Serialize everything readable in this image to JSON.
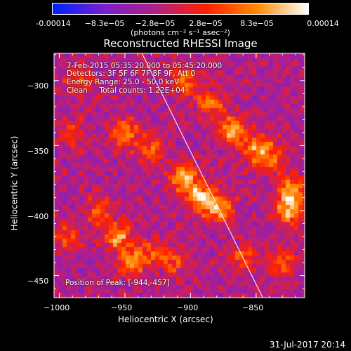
{
  "colorbar": {
    "tick_labels": [
      "-0.00014",
      "−8.3e−05",
      "−2.8e−05",
      "2.8e−05",
      "8.3e−05",
      "0.00014"
    ],
    "unit_label": "(photons cm⁻² s⁻¹ asec⁻²)",
    "colors": [
      "#0022ff",
      "#7a1fd0",
      "#b0208a",
      "#ff2000",
      "#ff8a00",
      "#ffffff"
    ]
  },
  "info": {
    "line1": "7-Feb-2015 05:35:20.000 to 05:45:20.000",
    "line2": "Detectors: 3F 5F 6F 7F 8F 9F, Att 0",
    "line3": "Energy Range: 25.0 - 50.0 keV",
    "line4": "Clean     Total counts: 1.22E+04",
    "peak": "Position of Peak: [-944,-457]"
  },
  "footer": {
    "date": "31-Jul-2017 20:14"
  },
  "chart_data": {
    "type": "heatmap",
    "title": "Reconstructed RHESSI Image",
    "xlabel": "Heliocentric X (arcsec)",
    "ylabel": "Heliocentric Y (arcsec)",
    "xlim": [
      -1004,
      -813
    ],
    "ylim": [
      -467,
      -279
    ],
    "x_ticks": [
      -1000,
      -950,
      -900,
      -850
    ],
    "y_ticks": [
      -300,
      -350,
      -400,
      -450
    ],
    "x_tick_labels": [
      "−1000",
      "−950",
      "−900",
      "−850"
    ],
    "y_tick_labels": [
      "−300",
      "−350",
      "−400",
      "−450"
    ],
    "value_range": [
      -0.00014,
      0.00014
    ],
    "limb_line": [
      [
        -937,
        -279
      ],
      [
        -845,
        -467
      ]
    ],
    "peak_position": [
      -944,
      -457
    ],
    "grid": false,
    "hotspots": [
      {
        "x": -950,
        "y": -340,
        "value": 0.00011
      },
      {
        "x": -930,
        "y": -353,
        "value": 9e-05
      },
      {
        "x": -905,
        "y": -375,
        "value": 0.00013
      },
      {
        "x": -892,
        "y": -390,
        "value": 0.00014
      },
      {
        "x": -878,
        "y": -398,
        "value": 0.00012
      },
      {
        "x": -905,
        "y": -300,
        "value": 0.0001
      },
      {
        "x": -885,
        "y": -318,
        "value": 0.0001
      },
      {
        "x": -868,
        "y": -338,
        "value": 0.00012
      },
      {
        "x": -850,
        "y": -352,
        "value": 0.00011
      },
      {
        "x": -838,
        "y": -360,
        "value": 9e-05
      },
      {
        "x": -955,
        "y": -420,
        "value": 0.00012
      },
      {
        "x": -945,
        "y": -440,
        "value": 0.00011
      },
      {
        "x": -970,
        "y": -400,
        "value": 8e-05
      },
      {
        "x": -985,
        "y": -300,
        "value": 7e-05
      },
      {
        "x": -990,
        "y": -340,
        "value": 6e-05
      },
      {
        "x": -995,
        "y": -420,
        "value": 7e-05
      },
      {
        "x": -823,
        "y": -385,
        "value": 0.00013
      },
      {
        "x": -825,
        "y": -400,
        "value": 0.00012
      },
      {
        "x": -830,
        "y": -440,
        "value": 9e-05
      },
      {
        "x": -860,
        "y": -435,
        "value": 8e-05
      },
      {
        "x": -928,
        "y": -432,
        "value": 8e-05
      },
      {
        "x": -912,
        "y": -440,
        "value": 7e-05
      }
    ]
  }
}
